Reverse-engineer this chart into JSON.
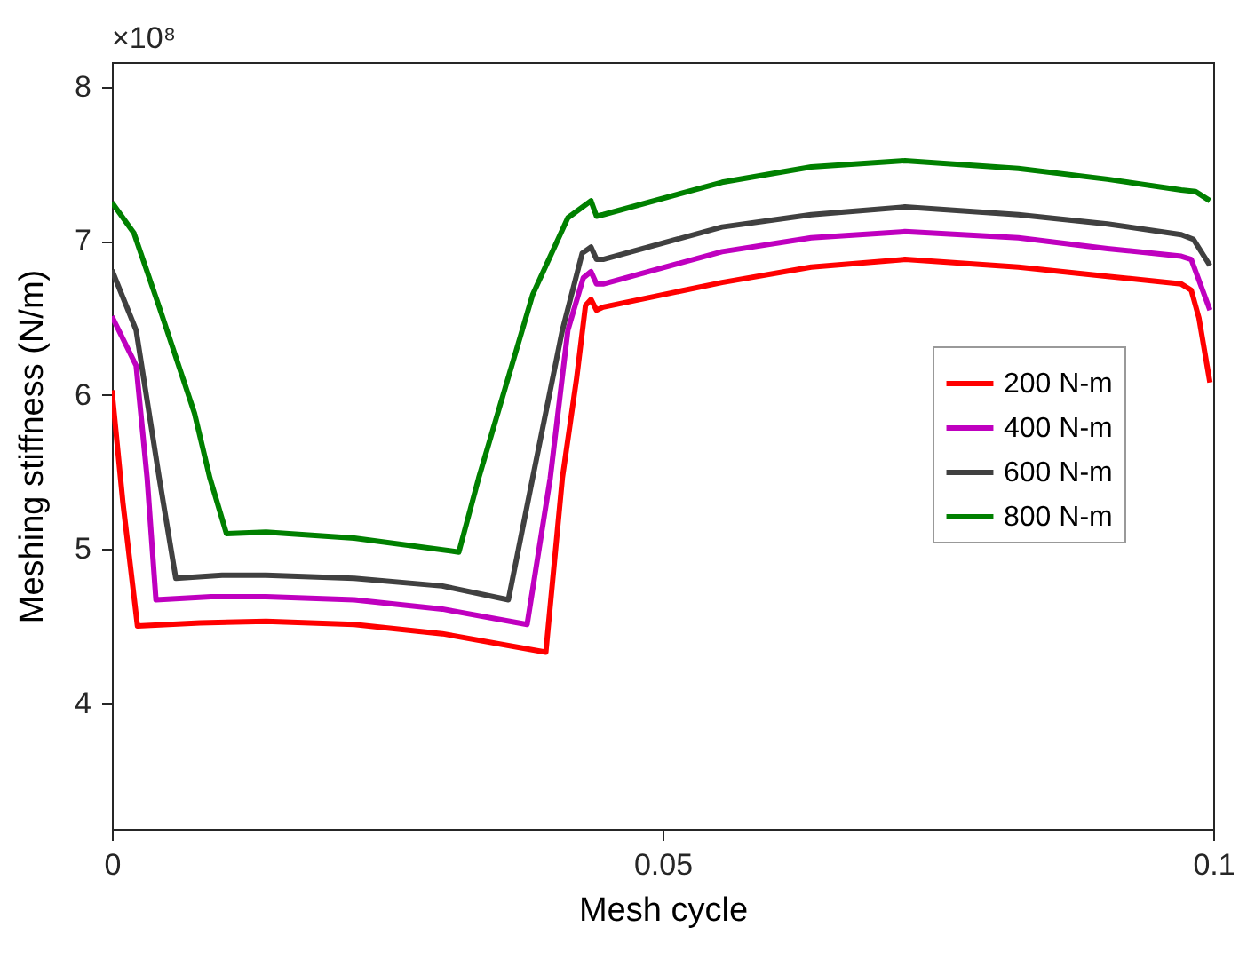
{
  "chart_data": {
    "type": "line",
    "xlabel": "Mesh cycle",
    "ylabel": "Meshing stiffness (N/m)",
    "annotations": [
      "×10⁸"
    ],
    "xlim": [
      0,
      0.1
    ],
    "xticks": [
      0,
      0.05,
      0.1
    ],
    "ylim": [
      3.18,
      8.16
    ],
    "yticks": [
      4,
      5,
      6,
      7,
      8
    ],
    "grid": false,
    "legend": "right",
    "marker": "none",
    "line_style": "solid",
    "series": [
      {
        "name": "200 N-m",
        "color": "#ff0000",
        "x": [
          0,
          0.001,
          0.00232,
          0.008,
          0.014,
          0.022,
          0.03,
          0.0394,
          0.0409,
          0.0422,
          0.043,
          0.0435,
          0.044,
          0.0446,
          0.0554,
          0.0635,
          0.072,
          0.0823,
          0.0904,
          0.0971,
          0.098,
          0.0987,
          0.0997
        ],
        "values": [
          6.03,
          5.3,
          4.5,
          4.52,
          4.53,
          4.51,
          4.45,
          4.33,
          5.46,
          6.11,
          6.58,
          6.62,
          6.55,
          6.57,
          6.73,
          6.83,
          6.88,
          6.83,
          6.77,
          6.72,
          6.68,
          6.5,
          6.08
        ]
      },
      {
        "name": "400 N-m",
        "color": "#bf00bf",
        "x": [
          0,
          0.0022,
          0.0032,
          0.004,
          0.009,
          0.014,
          0.022,
          0.03,
          0.0377,
          0.0398,
          0.0414,
          0.0428,
          0.0435,
          0.044,
          0.0446,
          0.0554,
          0.0635,
          0.072,
          0.0823,
          0.0904,
          0.0971,
          0.098,
          0.0997
        ],
        "values": [
          6.51,
          6.19,
          5.46,
          4.67,
          4.69,
          4.69,
          4.67,
          4.61,
          4.51,
          5.46,
          6.42,
          6.76,
          6.8,
          6.72,
          6.72,
          6.93,
          7.02,
          7.06,
          7.02,
          6.95,
          6.9,
          6.88,
          6.55
        ]
      },
      {
        "name": "600 N-m",
        "color": "#404040",
        "x": [
          0,
          0.0022,
          0.0043,
          0.0058,
          0.01,
          0.014,
          0.022,
          0.03,
          0.036,
          0.0382,
          0.0409,
          0.0427,
          0.0435,
          0.044,
          0.0446,
          0.0554,
          0.0635,
          0.072,
          0.0823,
          0.0904,
          0.0971,
          0.0982,
          0.0997
        ],
        "values": [
          6.81,
          6.42,
          5.46,
          4.81,
          4.83,
          4.83,
          4.81,
          4.76,
          4.67,
          5.46,
          6.42,
          6.92,
          6.96,
          6.88,
          6.88,
          7.09,
          7.17,
          7.22,
          7.17,
          7.11,
          7.04,
          7.01,
          6.84
        ]
      },
      {
        "name": "800 N-m",
        "color": "#008000",
        "x": [
          0,
          0.002,
          0.0043,
          0.0075,
          0.0089,
          0.0104,
          0.014,
          0.022,
          0.0315,
          0.0333,
          0.0382,
          0.0414,
          0.0435,
          0.044,
          0.0446,
          0.0554,
          0.0635,
          0.072,
          0.0823,
          0.0904,
          0.0971,
          0.0984,
          0.0997
        ],
        "values": [
          7.25,
          7.05,
          6.57,
          5.88,
          5.46,
          5.1,
          5.11,
          5.07,
          4.98,
          5.46,
          6.65,
          7.15,
          7.26,
          7.16,
          7.17,
          7.38,
          7.48,
          7.52,
          7.47,
          7.4,
          7.33,
          7.32,
          7.26
        ]
      }
    ]
  }
}
